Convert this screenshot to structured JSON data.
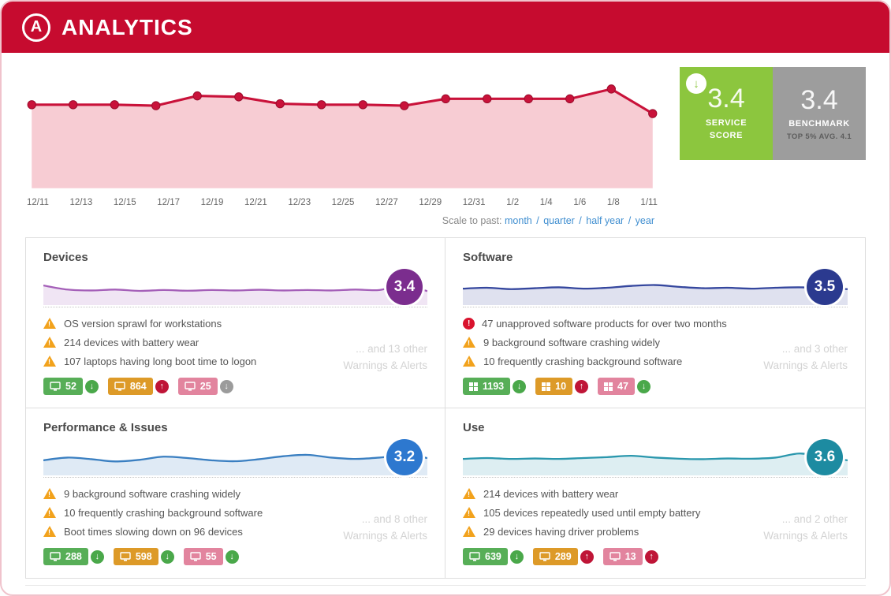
{
  "header": {
    "logo_letter": "A",
    "app_title": "ANALYTICS",
    "bg_color": "#c60b2f"
  },
  "service_score": {
    "value": "3.4",
    "label_line1": "SERVICE",
    "label_line2": "SCORE",
    "color": "#8cc63e",
    "trend_icon": "arrow-down"
  },
  "benchmark": {
    "value": "3.4",
    "label": "BENCHMARK",
    "sub": "TOP 5% AVG. 4.1",
    "color": "#9d9d9d"
  },
  "scale_selector": {
    "label": "Scale to past:",
    "separator": "/",
    "options": [
      "month",
      "quarter",
      "half year",
      "year"
    ]
  },
  "chart_data": [
    {
      "name": "service-score-trend",
      "type": "line",
      "x": [
        "12/11",
        "12/13",
        "12/15",
        "12/17",
        "12/19",
        "12/21",
        "12/23",
        "12/25",
        "12/27",
        "12/29",
        "12/31",
        "1/2",
        "1/4",
        "1/6",
        "1/8",
        "1/11"
      ],
      "values": [
        3.4,
        3.4,
        3.4,
        3.39,
        3.49,
        3.48,
        3.41,
        3.4,
        3.4,
        3.39,
        3.46,
        3.46,
        3.46,
        3.46,
        3.56,
        3.31
      ],
      "line_color": "#c9123a",
      "fill_color": "#f7ccd3",
      "grid": false,
      "legend": "none"
    },
    {
      "name": "devices-sparkline",
      "type": "area",
      "color": "#a45fb8",
      "values": [
        0.6,
        0.42,
        0.38,
        0.42,
        0.36,
        0.4,
        0.37,
        0.4,
        0.38,
        0.41,
        0.38,
        0.4,
        0.38,
        0.42,
        0.4,
        0.62,
        0.35
      ]
    },
    {
      "name": "software-sparkline",
      "type": "area",
      "color": "#35479e",
      "values": [
        0.46,
        0.5,
        0.44,
        0.48,
        0.52,
        0.46,
        0.5,
        0.58,
        0.62,
        0.54,
        0.48,
        0.5,
        0.46,
        0.5,
        0.52,
        0.48,
        0.44
      ]
    },
    {
      "name": "performance-sparkline",
      "type": "area",
      "color": "#3a7fc1",
      "values": [
        0.4,
        0.52,
        0.45,
        0.35,
        0.42,
        0.56,
        0.5,
        0.4,
        0.36,
        0.45,
        0.58,
        0.64,
        0.52,
        0.46,
        0.52,
        0.62,
        0.5
      ]
    },
    {
      "name": "use-sparkline",
      "type": "area",
      "color": "#2a97ad",
      "values": [
        0.46,
        0.5,
        0.46,
        0.48,
        0.46,
        0.5,
        0.54,
        0.6,
        0.52,
        0.47,
        0.45,
        0.48,
        0.47,
        0.52,
        0.7,
        0.55,
        0.4
      ]
    }
  ],
  "panels": [
    {
      "title": "Devices",
      "score": "3.4",
      "accent": "#7b2d8e",
      "warnings": [
        {
          "severity": "warning",
          "text": "OS version sprawl for workstations"
        },
        {
          "severity": "warning",
          "text": "214 devices with battery wear"
        },
        {
          "severity": "warning",
          "text": "107 laptops having long boot time to logon"
        }
      ],
      "more_line1": "... and 13 other",
      "more_line2": "Warnings & Alerts",
      "badges": [
        {
          "count": "52",
          "color": "green",
          "icon": "monitor-icon",
          "trend": "down",
          "trend_color": "green"
        },
        {
          "count": "864",
          "color": "orange",
          "icon": "monitor-icon",
          "trend": "up",
          "trend_color": "red"
        },
        {
          "count": "25",
          "color": "pink",
          "icon": "monitor-icon",
          "trend": "down",
          "trend_color": "gray"
        }
      ]
    },
    {
      "title": "Software",
      "score": "3.5",
      "accent": "#2b3a8f",
      "warnings": [
        {
          "severity": "critical",
          "text": "47 unapproved software products for over two months"
        },
        {
          "severity": "warning",
          "text": "9 background software crashing widely"
        },
        {
          "severity": "warning",
          "text": "10 frequently crashing background software"
        }
      ],
      "more_line1": "... and 3 other",
      "more_line2": "Warnings & Alerts",
      "badges": [
        {
          "count": "1193",
          "color": "green",
          "icon": "software-grid-icon",
          "trend": "down",
          "trend_color": "green"
        },
        {
          "count": "10",
          "color": "orange",
          "icon": "software-grid-icon",
          "trend": "up",
          "trend_color": "red"
        },
        {
          "count": "47",
          "color": "pink",
          "icon": "software-grid-icon",
          "trend": "down",
          "trend_color": "green"
        }
      ]
    },
    {
      "title": "Performance & Issues",
      "score": "3.2",
      "accent": "#2d78cf",
      "warnings": [
        {
          "severity": "warning",
          "text": "9 background software crashing widely"
        },
        {
          "severity": "warning",
          "text": "10 frequently crashing background software"
        },
        {
          "severity": "warning",
          "text": "Boot times slowing down on 96 devices"
        }
      ],
      "more_line1": "... and 8 other",
      "more_line2": "Warnings & Alerts",
      "badges": [
        {
          "count": "288",
          "color": "green",
          "icon": "monitor-icon",
          "trend": "down",
          "trend_color": "green"
        },
        {
          "count": "598",
          "color": "orange",
          "icon": "monitor-icon",
          "trend": "down",
          "trend_color": "green"
        },
        {
          "count": "55",
          "color": "pink",
          "icon": "monitor-icon",
          "trend": "down",
          "trend_color": "green"
        }
      ]
    },
    {
      "title": "Use",
      "score": "3.6",
      "accent": "#1d8ba1",
      "warnings": [
        {
          "severity": "warning",
          "text": "214 devices with battery wear"
        },
        {
          "severity": "warning",
          "text": "105 devices repeatedly used until empty battery"
        },
        {
          "severity": "warning",
          "text": "29 devices having driver problems"
        }
      ],
      "more_line1": "... and 2 other",
      "more_line2": "Warnings & Alerts",
      "badges": [
        {
          "count": "639",
          "color": "green",
          "icon": "monitor-icon",
          "trend": "down",
          "trend_color": "green"
        },
        {
          "count": "289",
          "color": "orange",
          "icon": "monitor-icon",
          "trend": "up",
          "trend_color": "red"
        },
        {
          "count": "13",
          "color": "pink",
          "icon": "monitor-icon",
          "trend": "up",
          "trend_color": "red"
        }
      ]
    }
  ]
}
